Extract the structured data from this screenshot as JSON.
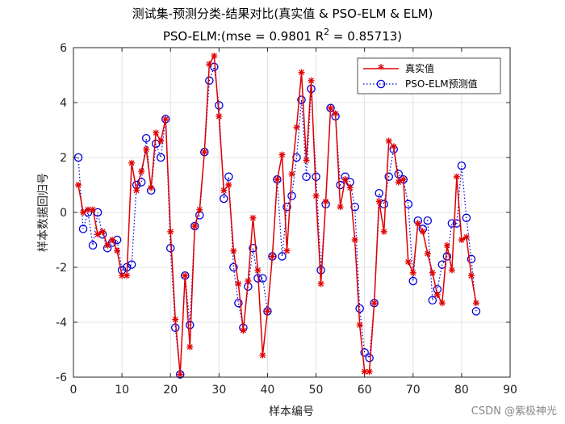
{
  "chart_data": {
    "type": "line",
    "title_line1": "测试集-预测分类-结果对比(真实值 & PSO-ELM & ELM)",
    "title_line2_prefix": "PSO-ELM:(mse = 0.9801 R",
    "title_line2_sup": "2",
    "title_line2_suffix": " = 0.85713)",
    "xlabel": "样本编号",
    "ylabel": "样本数据回归号",
    "xlim": [
      0,
      90
    ],
    "ylim": [
      -6,
      6
    ],
    "xticks": [
      0,
      10,
      20,
      30,
      40,
      50,
      60,
      70,
      80,
      90
    ],
    "yticks": [
      -6,
      -4,
      -2,
      0,
      2,
      4,
      6
    ],
    "grid": true,
    "legend_position": "top-right",
    "series": [
      {
        "name": "真实值",
        "color": "#e00000",
        "style": "solid-line-star-marker",
        "values": [
          1.0,
          0.0,
          0.1,
          0.1,
          -0.8,
          -0.7,
          -1.2,
          -1.0,
          -1.4,
          -2.3,
          -2.3,
          1.8,
          0.8,
          1.5,
          2.3,
          0.9,
          2.9,
          2.6,
          3.4,
          -0.7,
          -3.9,
          -5.9,
          -2.3,
          -4.9,
          -0.5,
          0.1,
          2.2,
          5.4,
          5.7,
          3.5,
          0.8,
          1.0,
          -1.4,
          -2.6,
          -4.3,
          -2.5,
          -0.2,
          -2.1,
          -5.2,
          -3.6,
          -1.6,
          1.2,
          2.1,
          -1.4,
          1.4,
          3.1,
          5.1,
          1.9,
          4.8,
          0.6,
          -2.6,
          0.4,
          3.8,
          3.6,
          0.2,
          1.2,
          0.9,
          -1.0,
          -4.1,
          -5.8,
          -5.8,
          -3.3,
          0.4,
          -0.7,
          2.6,
          2.4,
          1.1,
          1.2,
          -1.8,
          -2.2,
          -0.4,
          -0.7,
          -1.5,
          -2.2,
          -3.0,
          -3.3,
          -1.2,
          -2.1,
          1.3,
          -1.0,
          -0.9,
          -2.3,
          -3.3
        ]
      },
      {
        "name": "PSO-ELM预测值",
        "color": "#0000dd",
        "style": "dotted-line-circle-marker",
        "values": [
          2.0,
          -0.6,
          0.0,
          -1.2,
          0.0,
          -0.8,
          -1.3,
          -1.1,
          -1.0,
          -2.1,
          -2.0,
          -1.9,
          1.0,
          1.1,
          2.7,
          0.8,
          2.5,
          2.0,
          3.4,
          -1.3,
          -4.2,
          -5.9,
          -2.3,
          -4.1,
          -0.5,
          -0.1,
          2.2,
          4.8,
          5.3,
          3.9,
          0.5,
          1.3,
          -2.0,
          -3.3,
          -4.2,
          -2.7,
          -1.3,
          -2.4,
          -2.4,
          -3.6,
          -1.6,
          1.2,
          -1.6,
          0.2,
          0.6,
          2.0,
          4.1,
          1.3,
          4.5,
          1.3,
          -2.1,
          0.3,
          3.8,
          3.5,
          1.0,
          1.3,
          1.1,
          0.2,
          -3.5,
          -5.1,
          -5.3,
          -3.3,
          0.7,
          0.3,
          1.3,
          2.3,
          1.4,
          1.2,
          0.3,
          -2.5,
          -0.3,
          -0.6,
          -0.3,
          -3.2,
          -2.8,
          -1.9,
          -1.6,
          -0.4,
          -0.4,
          1.7,
          -0.2,
          -1.7,
          -3.6
        ]
      }
    ]
  },
  "watermark": "CSDN @紫极神光"
}
